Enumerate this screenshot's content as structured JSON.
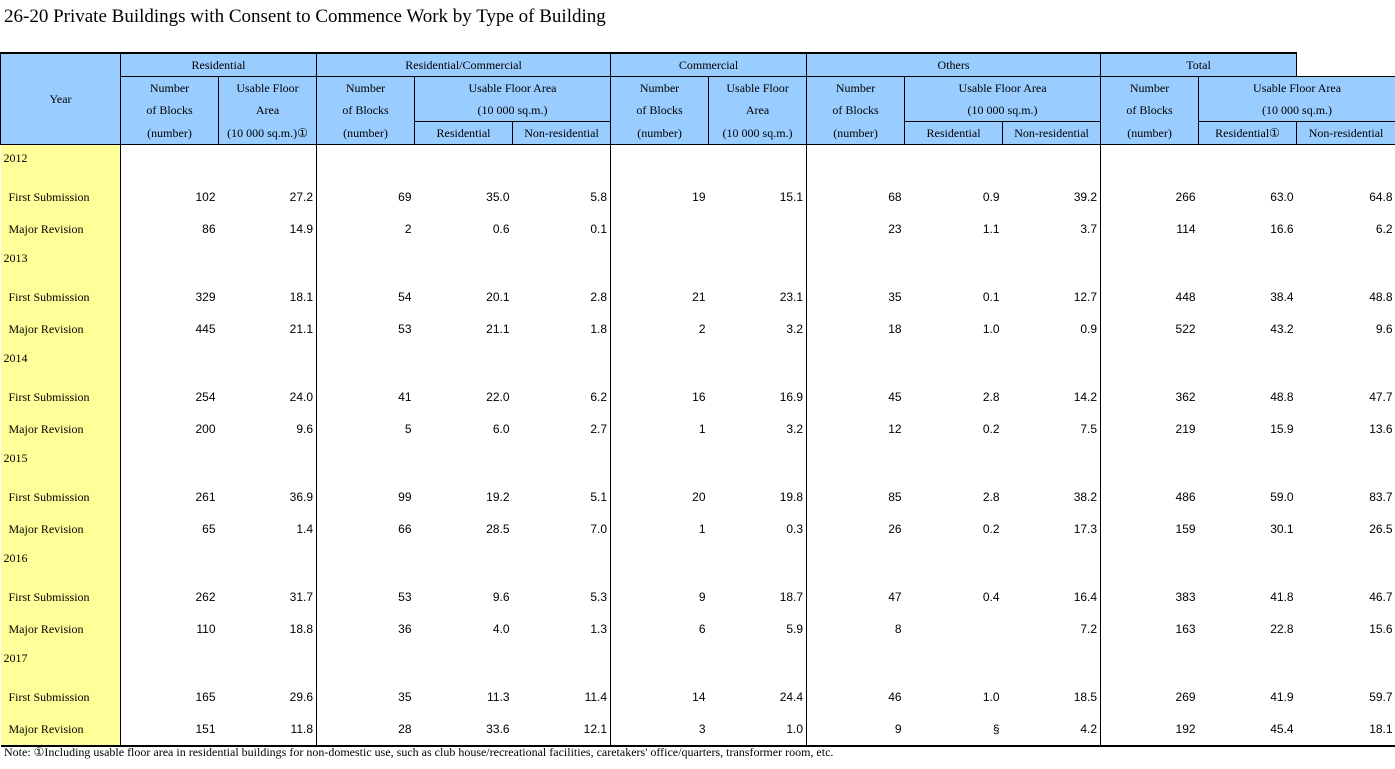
{
  "title": "26-20  Private Buildings with Consent to Commence Work by Type of Building",
  "headers": {
    "year": "Year",
    "groups": [
      "Residential",
      "Residential/Commercial",
      "Commercial",
      "Others",
      "Total"
    ],
    "number_of_blocks_1": "Number",
    "number_of_blocks_2": "of Blocks",
    "number_unit": "(number)",
    "usable_floor_1": "Usable Floor",
    "usable_floor_2": "Area",
    "usable_floor_area": "Usable Floor Area",
    "area_unit": "(10 000 sq.m.)",
    "area_unit_note": "(10 000 sq.m.)①",
    "residential": "Residential",
    "residential_note": "Residential①",
    "non_residential": "Non-residential"
  },
  "rows": [
    {
      "year": "2012",
      "items": [
        {
          "label": "First Submission",
          "v": [
            "102",
            "27.2",
            "69",
            "35.0",
            "5.8",
            "19",
            "15.1",
            "68",
            "0.9",
            "39.2",
            "266",
            "63.0",
            "64.8"
          ]
        },
        {
          "label": "Major Revision",
          "v": [
            "86",
            "14.9",
            "2",
            "0.6",
            "0.1",
            "",
            "",
            "23",
            "1.1",
            "3.7",
            "114",
            "16.6",
            "6.2"
          ]
        }
      ]
    },
    {
      "year": "2013",
      "items": [
        {
          "label": "First Submission",
          "v": [
            "329",
            "18.1",
            "54",
            "20.1",
            "2.8",
            "21",
            "23.1",
            "35",
            "0.1",
            "12.7",
            "448",
            "38.4",
            "48.8"
          ]
        },
        {
          "label": "Major Revision",
          "v": [
            "445",
            "21.1",
            "53",
            "21.1",
            "1.8",
            "2",
            "3.2",
            "18",
            "1.0",
            "0.9",
            "522",
            "43.2",
            "9.6"
          ]
        }
      ]
    },
    {
      "year": "2014",
      "items": [
        {
          "label": "First Submission",
          "v": [
            "254",
            "24.0",
            "41",
            "22.0",
            "6.2",
            "16",
            "16.9",
            "45",
            "2.8",
            "14.2",
            "362",
            "48.8",
            "47.7"
          ]
        },
        {
          "label": "Major Revision",
          "v": [
            "200",
            "9.6",
            "5",
            "6.0",
            "2.7",
            "1",
            "3.2",
            "12",
            "0.2",
            "7.5",
            "219",
            "15.9",
            "13.6"
          ]
        }
      ]
    },
    {
      "year": "2015",
      "items": [
        {
          "label": "First Submission",
          "v": [
            "261",
            "36.9",
            "99",
            "19.2",
            "5.1",
            "20",
            "19.8",
            "85",
            "2.8",
            "38.2",
            "486",
            "59.0",
            "83.7"
          ]
        },
        {
          "label": "Major Revision",
          "v": [
            "65",
            "1.4",
            "66",
            "28.5",
            "7.0",
            "1",
            "0.3",
            "26",
            "0.2",
            "17.3",
            "159",
            "30.1",
            "26.5"
          ]
        }
      ]
    },
    {
      "year": "2016",
      "items": [
        {
          "label": "First Submission",
          "v": [
            "262",
            "31.7",
            "53",
            "9.6",
            "5.3",
            "9",
            "18.7",
            "47",
            "0.4",
            "16.4",
            "383",
            "41.8",
            "46.7"
          ]
        },
        {
          "label": "Major Revision",
          "v": [
            "110",
            "18.8",
            "36",
            "4.0",
            "1.3",
            "6",
            "5.9",
            "8",
            "",
            "7.2",
            "163",
            "22.8",
            "15.6"
          ]
        }
      ]
    },
    {
      "year": "2017",
      "items": [
        {
          "label": "First Submission",
          "v": [
            "165",
            "29.6",
            "35",
            "11.3",
            "11.4",
            "14",
            "24.4",
            "46",
            "1.0",
            "18.5",
            "269",
            "41.9",
            "59.7"
          ]
        },
        {
          "label": "Major Revision",
          "v": [
            "151",
            "11.8",
            "28",
            "33.6",
            "12.1",
            "3",
            "1.0",
            "9",
            "§",
            "4.2",
            "192",
            "45.4",
            "18.1"
          ]
        }
      ]
    }
  ],
  "note": "Note: ①Including usable floor area in residential buildings for non-domestic use, such as club house/recreational facilities, caretakers' office/quarters, transformer room, etc.",
  "colors": {
    "header_bg": "#99ccff",
    "year_col_bg": "#ffff99"
  }
}
